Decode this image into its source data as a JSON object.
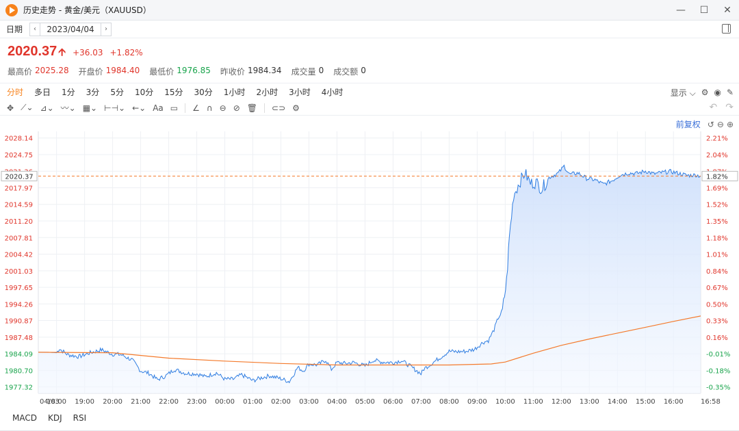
{
  "window": {
    "title": "历史走势 - 黄金/美元（XAUUSD）",
    "controls": [
      "minimize-icon",
      "maximize-icon",
      "close-icon"
    ]
  },
  "date_bar": {
    "label": "日期",
    "value": "2023/04/04",
    "prev": "‹",
    "next": "›"
  },
  "quote": {
    "price": "2020.37",
    "change": "+36.03",
    "change_pct": "+1.82%",
    "stats": [
      {
        "label": "最高价",
        "value": "2025.28",
        "tone": "red"
      },
      {
        "label": "开盘价",
        "value": "1984.40",
        "tone": "red"
      },
      {
        "label": "最低价",
        "value": "1976.85",
        "tone": "green"
      },
      {
        "label": "昨收价",
        "value": "1984.34",
        "tone": "gray"
      },
      {
        "label": "成交量",
        "value": "0",
        "tone": "gray"
      },
      {
        "label": "成交额",
        "value": "0",
        "tone": "gray"
      }
    ]
  },
  "periods": [
    "分时",
    "多日",
    "1分",
    "3分",
    "5分",
    "10分",
    "15分",
    "30分",
    "1小时",
    "2小时",
    "3小时",
    "4小时"
  ],
  "active_period": 0,
  "display_label": "显示",
  "adjust_label": "前复权",
  "indicators": [
    "MACD",
    "KDJ",
    "RSI"
  ],
  "colors": {
    "up": "#e0352b",
    "down": "#17a34a",
    "price_line": "#2f7de1",
    "avg_line": "#f47a2b",
    "accent": "#f7821b"
  },
  "chart_data": {
    "type": "area",
    "prev_close": 1984.34,
    "current": 2020.37,
    "current_label": "2020.37",
    "current_pct_label": "1.82%",
    "ylim": [
      1976.0,
      2029.5
    ],
    "y_ticks_left": [
      "2028.14",
      "2024.75",
      "2021.36",
      "2017.97",
      "2014.59",
      "2011.20",
      "2007.81",
      "2004.42",
      "2001.03",
      "1997.65",
      "1994.26",
      "1990.87",
      "1987.48",
      "1984.09",
      "1980.70",
      "1977.32"
    ],
    "y_ticks_left_values": [
      2028.14,
      2024.75,
      2021.36,
      2017.97,
      2014.59,
      2011.2,
      2007.81,
      2004.42,
      2001.03,
      1997.65,
      1994.26,
      1990.87,
      1987.48,
      1984.09,
      1980.7,
      1977.32
    ],
    "y_ticks_right": [
      "2.21%",
      "2.04%",
      "1.87%",
      "1.69%",
      "1.52%",
      "1.35%",
      "1.18%",
      "1.01%",
      "0.84%",
      "0.67%",
      "0.50%",
      "0.33%",
      "0.16%",
      "-0.01%",
      "-0.18%",
      "-0.35%"
    ],
    "x_ticks": [
      "04/03",
      "18:00",
      "19:00",
      "20:00",
      "21:00",
      "22:00",
      "23:00",
      "00:00",
      "01:00",
      "02:00",
      "03:00",
      "04:00",
      "05:00",
      "06:00",
      "07:00",
      "08:00",
      "09:00",
      "10:00",
      "11:00",
      "12:00",
      "13:00",
      "14:00",
      "15:00",
      "16:00",
      "16:58"
    ],
    "x_tick_hours": [
      -0.65,
      0,
      1,
      2,
      3,
      4,
      5,
      6,
      7,
      8,
      9,
      10,
      11,
      12,
      13,
      14,
      15,
      16,
      17,
      18,
      19,
      20,
      21,
      22,
      22.97
    ],
    "x_range_hours": [
      -0.65,
      22.97
    ],
    "series": [
      {
        "kind": "price",
        "x_hours": [
          -0.65,
          -0.3,
          0,
          0.1,
          0.4,
          0.8,
          1.2,
          1.6,
          2.0,
          2.3,
          2.7,
          3.0,
          3.3,
          3.6,
          3.9,
          4.2,
          4.6,
          5.0,
          5.3,
          5.7,
          6.0,
          6.3,
          6.6,
          7.0,
          7.3,
          7.6,
          8.0,
          8.3,
          8.6,
          8.8,
          9.0,
          9.3,
          9.6,
          9.8,
          10.0,
          10.3,
          10.6,
          11.0,
          11.3,
          11.6,
          12.0,
          12.3,
          12.6,
          13.0,
          13.1,
          13.3,
          13.6,
          14.0,
          14.3,
          14.6,
          14.9,
          15.2,
          15.4,
          15.6,
          15.75,
          15.9,
          16.05,
          16.15,
          16.3,
          16.5,
          16.7,
          16.9,
          17.1,
          17.3,
          17.6,
          17.9,
          18.1,
          18.3,
          18.6,
          18.9,
          19.2,
          19.5,
          19.8,
          20.1,
          20.4,
          20.7,
          21.0,
          21.3,
          21.6,
          21.9,
          22.2,
          22.5,
          22.8,
          22.97
        ],
        "values": [
          1984.4,
          1984.4,
          1984.3,
          1985.1,
          1983.9,
          1983.5,
          1984.3,
          1984.9,
          1984.0,
          1983.9,
          1982.8,
          1980.6,
          1980.1,
          1978.8,
          1979.6,
          1980.9,
          1980.1,
          1980.0,
          1979.4,
          1980.2,
          1978.9,
          1978.9,
          1979.8,
          1978.6,
          1979.2,
          1979.6,
          1979.0,
          1978.4,
          1981.3,
          1980.6,
          1982.0,
          1981.8,
          1982.8,
          1980.9,
          1982.3,
          1982.1,
          1982.3,
          1981.6,
          1982.8,
          1982.4,
          1982.3,
          1982.7,
          1981.6,
          1980.0,
          1981.0,
          1981.8,
          1983.0,
          1984.6,
          1984.5,
          1984.6,
          1985.0,
          1986.4,
          1986.8,
          1989.0,
          1991.4,
          1992.8,
          1999.0,
          2008.0,
          2016.5,
          2019.0,
          2021.0,
          2018.9,
          2019.1,
          2017.8,
          2020.2,
          2021.0,
          2022.4,
          2020.7,
          2021.0,
          2019.9,
          2019.6,
          2018.7,
          2019.4,
          2020.6,
          2021.0,
          2020.9,
          2021.4,
          2020.8,
          2021.1,
          2021.3,
          2020.9,
          2020.5,
          2020.6,
          2020.37
        ]
      },
      {
        "kind": "average",
        "x_hours": [
          -0.65,
          2.0,
          4.0,
          6.0,
          8.0,
          10.0,
          12.0,
          14.0,
          15.5,
          16.0,
          17.0,
          18.0,
          19.0,
          20.0,
          21.0,
          22.0,
          22.97
        ],
        "values": [
          1984.4,
          1984.3,
          1983.2,
          1982.6,
          1982.1,
          1981.8,
          1981.8,
          1981.8,
          1982.0,
          1982.4,
          1984.2,
          1985.8,
          1987.1,
          1988.3,
          1989.5,
          1990.7,
          1991.8
        ]
      }
    ]
  }
}
